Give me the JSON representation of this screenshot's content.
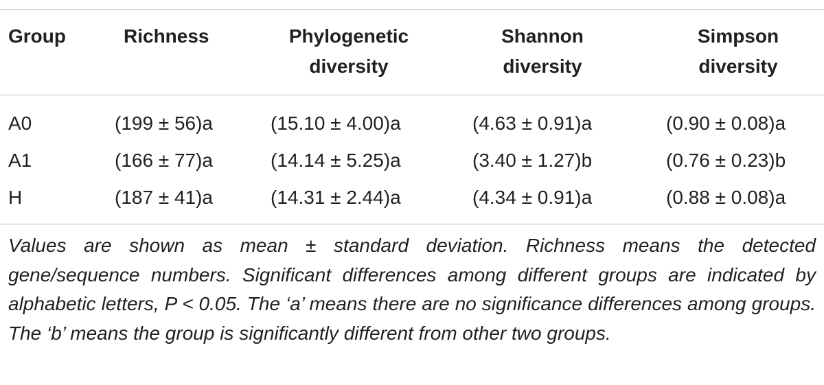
{
  "table": {
    "headers": {
      "group": "Group",
      "richness": "Richness",
      "phylogenetic": "Phylogenetic\ndiversity",
      "shannon": "Shannon\ndiversity",
      "simpson": "Simpson\ndiversity"
    },
    "rows": [
      {
        "group": "A0",
        "richness": "(199 ± 56)a",
        "phylogenetic": "(15.10 ± 4.00)a",
        "shannon": "(4.63 ± 0.91)a",
        "simpson": "(0.90 ± 0.08)a"
      },
      {
        "group": "A1",
        "richness": "(166 ± 77)a",
        "phylogenetic": "(14.14 ± 5.25)a",
        "shannon": "(3.40 ± 1.27)b",
        "simpson": "(0.76 ± 0.23)b"
      },
      {
        "group": "H",
        "richness": "(187 ± 41)a",
        "phylogenetic": "(14.31 ± 2.44)a",
        "shannon": "(4.34 ± 0.91)a",
        "simpson": "(0.88 ± 0.08)a"
      }
    ],
    "footnote": "Values are shown as mean ± standard deviation. Richness means the detected gene/sequence numbers. Significant differences among different groups are indicated by alphabetic letters, P < 0.05. The ‘a’ means there are no significance differences among groups. The ‘b’ means the group is significantly different from other two groups."
  }
}
